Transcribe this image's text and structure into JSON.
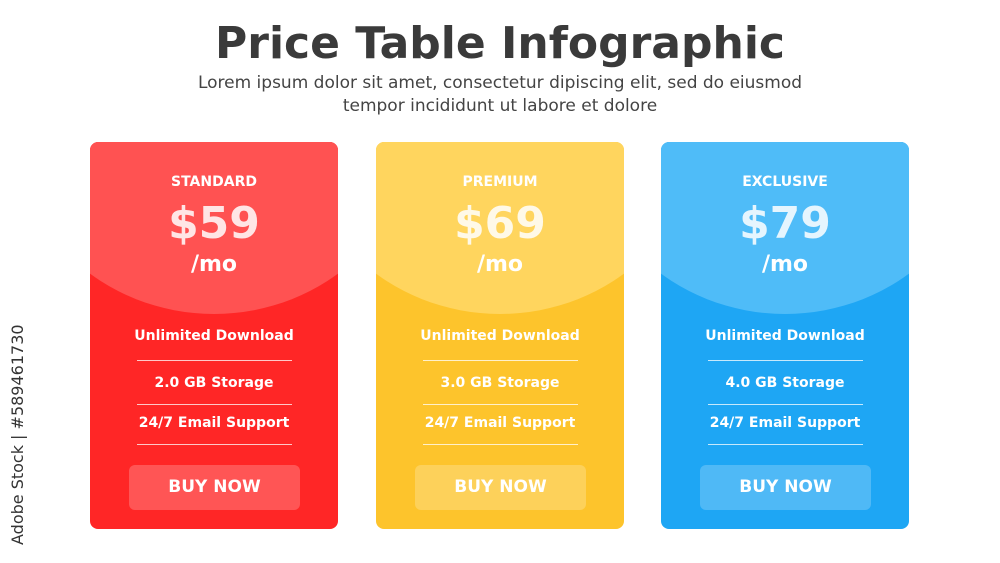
{
  "header": {
    "title": "Price Table Infographic",
    "subtitle": [
      "Lorem ipsum dolor sit amet, consectetur dipiscing elit, sed do eiusmod",
      "tempor incididunt ut labore et dolore"
    ]
  },
  "watermark": "Adobe Stock | #589461730",
  "plans": [
    {
      "name": "STANDARD",
      "price": "$59",
      "period": "/mo",
      "features": [
        "Unlimited Download",
        "2.0 GB Storage",
        "24/7 Email Support"
      ],
      "button": "BUY NOW",
      "color": "#ff2626",
      "top_color": "#ff5252"
    },
    {
      "name": "PREMIUM",
      "price": "$69",
      "period": "/mo",
      "features": [
        "Unlimited Download",
        "3.0 GB Storage",
        "24/7 Email Support"
      ],
      "button": "BUY NOW",
      "color": "#fdc42c",
      "top_color": "#ffd55e"
    },
    {
      "name": "EXCLUSIVE",
      "price": "$79",
      "period": "/mo",
      "features": [
        "Unlimited Download",
        "4.0 GB Storage",
        "24/7 Email Support"
      ],
      "button": "BUY NOW",
      "color": "#1ea6f4",
      "top_color": "#4fbcf8"
    }
  ]
}
